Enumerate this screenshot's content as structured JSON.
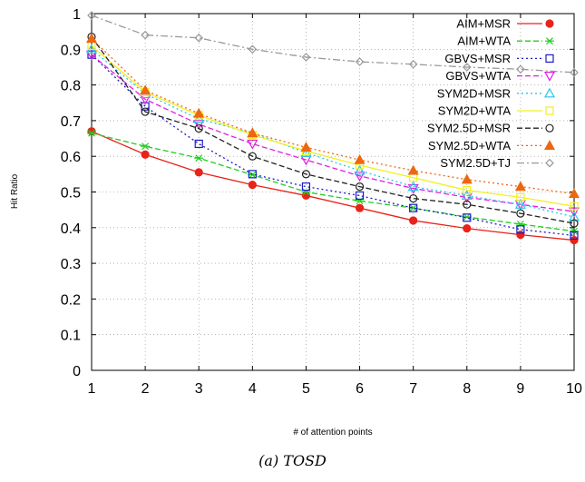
{
  "caption": "(a) TOSD",
  "chart_data": {
    "type": "line",
    "xlabel": "# of attention points",
    "ylabel": "Hit Ratio",
    "x": [
      1,
      2,
      3,
      4,
      5,
      6,
      7,
      8,
      9,
      10
    ],
    "xlim": [
      1,
      10
    ],
    "ylim": [
      0,
      1
    ],
    "xticks": [
      "1",
      "2",
      "3",
      "4",
      "5",
      "6",
      "7",
      "8",
      "9",
      "10"
    ],
    "yticks": [
      "0",
      "0.1",
      "0.2",
      "0.3",
      "0.4",
      "0.5",
      "0.6",
      "0.7",
      "0.8",
      "0.9",
      "1"
    ],
    "grid": true,
    "legend_position": "top-right",
    "series": [
      {
        "name": "AIM+MSR",
        "color": "#e8231a",
        "marker": "filled-circle",
        "dash": "solid",
        "values": [
          0.67,
          0.605,
          0.555,
          0.52,
          0.49,
          0.455,
          0.42,
          0.398,
          0.38,
          0.365
        ]
      },
      {
        "name": "AIM+WTA",
        "color": "#22cc22",
        "marker": "asterisk",
        "dash": "dashed",
        "values": [
          0.665,
          0.628,
          0.595,
          0.548,
          0.5,
          0.475,
          0.455,
          0.43,
          0.41,
          0.39
        ]
      },
      {
        "name": "GBVS+MSR",
        "color": "#1a1acc",
        "marker": "open-square",
        "dash": "dotted",
        "values": [
          0.885,
          0.74,
          0.635,
          0.55,
          0.515,
          0.49,
          0.455,
          0.428,
          0.395,
          0.378
        ]
      },
      {
        "name": "GBVS+WTA",
        "color": "#e020e0",
        "marker": "open-triangle-down",
        "dash": "dashed",
        "values": [
          0.885,
          0.76,
          0.69,
          0.635,
          0.59,
          0.545,
          0.51,
          0.485,
          0.465,
          0.445
        ]
      },
      {
        "name": "SYM2D+MSR",
        "color": "#22c8e8",
        "marker": "open-triangle-up",
        "dash": "dotted",
        "values": [
          0.9,
          0.775,
          0.705,
          0.665,
          0.61,
          0.56,
          0.515,
          0.49,
          0.465,
          0.43
        ]
      },
      {
        "name": "SYM2D+WTA",
        "color": "#f0f020",
        "marker": "open-square",
        "dash": "solid",
        "values": [
          0.91,
          0.78,
          0.715,
          0.66,
          0.615,
          0.575,
          0.54,
          0.505,
          0.485,
          0.46
        ]
      },
      {
        "name": "SYM2.5D+MSR",
        "color": "#222222",
        "marker": "open-circle",
        "dash": "dashed",
        "values": [
          0.935,
          0.725,
          0.678,
          0.6,
          0.55,
          0.515,
          0.482,
          0.465,
          0.44,
          0.412
        ]
      },
      {
        "name": "SYM2.5D+WTA",
        "color": "#ee6611",
        "marker": "filled-triangle-up",
        "dash": "dotted",
        "values": [
          0.93,
          0.785,
          0.72,
          0.665,
          0.625,
          0.59,
          0.56,
          0.535,
          0.515,
          0.495
        ]
      },
      {
        "name": "SYM2.5D+TJ",
        "color": "#9a9a9a",
        "marker": "open-diamond",
        "dash": "dashdot",
        "values": [
          0.995,
          0.94,
          0.932,
          0.9,
          0.878,
          0.865,
          0.858,
          0.85,
          0.844,
          0.835
        ]
      }
    ]
  }
}
